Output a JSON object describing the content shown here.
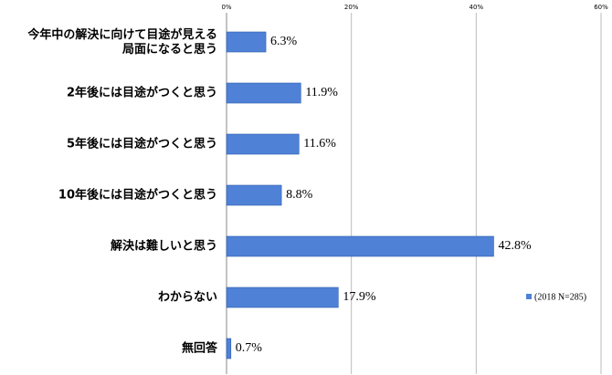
{
  "chart_data": {
    "type": "bar",
    "orientation": "horizontal",
    "categories": [
      "今年中の解決に向けて目途が見える\n局面になると思う",
      "2年後には目途がつくと思う",
      "5年後には目途がつくと思う",
      "10年後には目途がつくと思う",
      "解決は難しいと思う",
      "わからない",
      "無回答"
    ],
    "series": [
      {
        "name": "(2018 N=285)",
        "color": "#4f81d6",
        "values": [
          6.3,
          11.9,
          11.6,
          8.8,
          42.8,
          17.9,
          0.7
        ],
        "value_labels": [
          "6.3%",
          "11.9%",
          "11.6%",
          "8.8%",
          "42.8%",
          "17.9%",
          "0.7%"
        ]
      }
    ],
    "xlim": [
      0,
      60
    ],
    "xticks": [
      {
        "value": 0,
        "label": "0%"
      },
      {
        "value": 20,
        "label": "20%"
      },
      {
        "value": 40,
        "label": "40%"
      },
      {
        "value": 60,
        "label": "60%"
      }
    ],
    "grid": true,
    "legend": "right"
  }
}
